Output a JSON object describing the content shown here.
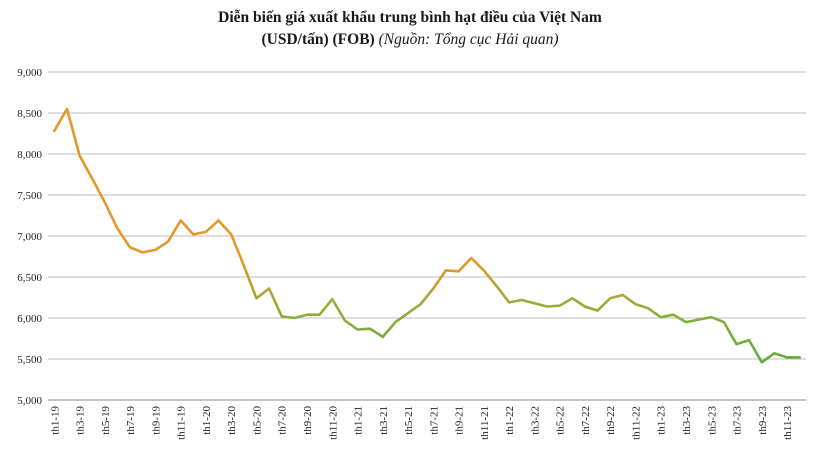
{
  "chart_data": {
    "type": "line",
    "title": "Diễn biến giá xuất khẩu trung bình hạt điều của Việt Nam",
    "subtitle_bold": "(USD/tấn) (FOB)",
    "subtitle_italic": "(Nguồn: Tổng cục Hải quan)",
    "xlabel": "",
    "ylabel": "",
    "ylim": [
      5000,
      9000
    ],
    "yticks": [
      5000,
      5500,
      6000,
      6500,
      7000,
      7500,
      8000,
      8500,
      9000
    ],
    "ytick_labels": [
      "5,000",
      "5,500",
      "6,000",
      "6,500",
      "7,000",
      "7,500",
      "8,000",
      "8,500",
      "9,000"
    ],
    "grid": true,
    "legend": "none",
    "categories": [
      "th1-19",
      "th2-19",
      "th3-19",
      "th4-19",
      "th5-19",
      "th6-19",
      "th7-19",
      "th8-19",
      "th9-19",
      "th10-19",
      "th11-19",
      "th12-19",
      "th1-20",
      "th2-20",
      "th3-20",
      "th4-20",
      "th5-20",
      "th6-20",
      "th7-20",
      "th8-20",
      "th9-20",
      "th10-20",
      "th11-20",
      "th12-20",
      "th1-21",
      "th2-21",
      "th3-21",
      "th4-21",
      "th5-21",
      "th6-21",
      "th7-21",
      "th8-21",
      "th9-21",
      "th10-21",
      "th11-21",
      "th12-21",
      "th1-22",
      "th2-22",
      "th3-22",
      "th4-22",
      "th5-22",
      "th6-22",
      "th7-22",
      "th8-22",
      "th9-22",
      "th10-22",
      "th11-22",
      "th12-22",
      "th1-23",
      "th2-23",
      "th3-23",
      "th4-23",
      "th5-23",
      "th6-23",
      "th7-23",
      "th8-23",
      "th9-23",
      "th10-23",
      "th11-23",
      "th12-23"
    ],
    "values": [
      8280,
      8550,
      7980,
      7700,
      7410,
      7090,
      6860,
      6800,
      6830,
      6930,
      7190,
      7020,
      7050,
      7190,
      7020,
      6640,
      6240,
      6360,
      6020,
      6000,
      6040,
      6040,
      6230,
      5970,
      5860,
      5870,
      5770,
      5950,
      6060,
      6170,
      6360,
      6580,
      6570,
      6730,
      6580,
      6390,
      6190,
      6220,
      6180,
      6140,
      6150,
      6240,
      6140,
      6090,
      6240,
      6280,
      6170,
      6120,
      6010,
      6040,
      5950,
      5980,
      6010,
      5950,
      5680,
      5730,
      5460,
      5570,
      5520,
      5520
    ],
    "colors": {
      "line_low": "#3aaa48",
      "line_mid": "#8fae3c",
      "line_high": "#e6962e",
      "grid": "#bdbdbd",
      "axis": "#888888"
    }
  }
}
